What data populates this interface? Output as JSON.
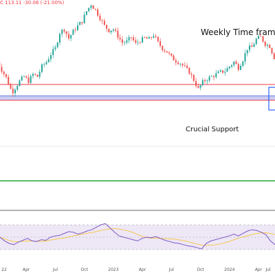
{
  "header": {
    "ohlc_text": "C 113.11 -30.06 (-21.00%)",
    "color": "#f23645"
  },
  "annotations": {
    "timeframe": "Weekly Time frame",
    "support": "Crucial Support"
  },
  "colors": {
    "up": "#26a69a",
    "down": "#ef5350",
    "support_line": "#f23645",
    "support_zone": "#c9cdf2",
    "support_zone_border": "#6f7ae0",
    "green_line": "#22a733",
    "rsi_line": "#7e57c2",
    "rsi_ma": "#f7c53b",
    "rsi_band": "#ede7f6",
    "box": "#2962ff"
  },
  "chart_data": {
    "type": "candlestick",
    "timeframe": "weekly",
    "x_tick_labels": [
      {
        "label": "22",
        "t": 0
      },
      {
        "label": "Apr",
        "t": 13
      },
      {
        "label": "Jul",
        "t": 26
      },
      {
        "label": "Oct",
        "t": 39
      },
      {
        "label": "2023",
        "t": 52
      },
      {
        "label": "Apr",
        "t": 65
      },
      {
        "label": "Jul",
        "t": 78
      },
      {
        "label": "Oct",
        "t": 91
      },
      {
        "label": "2024",
        "t": 104
      },
      {
        "label": "Apr",
        "t": 117
      },
      {
        "label": "Jul",
        "t": 130
      }
    ],
    "ylim": [
      80,
      200
    ],
    "price_path": [
      [
        0,
        150
      ],
      [
        2,
        143
      ],
      [
        4,
        136
      ],
      [
        6,
        126
      ],
      [
        7,
        124
      ],
      [
        8,
        127
      ],
      [
        10,
        133
      ],
      [
        12,
        137
      ],
      [
        14,
        133
      ],
      [
        16,
        139
      ],
      [
        18,
        137
      ],
      [
        20,
        146
      ],
      [
        22,
        150
      ],
      [
        24,
        157
      ],
      [
        26,
        162
      ],
      [
        28,
        176
      ],
      [
        30,
        179
      ],
      [
        32,
        171
      ],
      [
        34,
        177
      ],
      [
        36,
        182
      ],
      [
        38,
        186
      ],
      [
        40,
        195
      ],
      [
        42,
        201
      ],
      [
        44,
        196
      ],
      [
        46,
        189
      ],
      [
        48,
        182
      ],
      [
        50,
        178
      ],
      [
        52,
        179
      ],
      [
        54,
        173
      ],
      [
        56,
        167
      ],
      [
        58,
        168
      ],
      [
        60,
        172
      ],
      [
        62,
        166
      ],
      [
        64,
        169
      ],
      [
        66,
        171
      ],
      [
        68,
        170
      ],
      [
        70,
        174
      ],
      [
        72,
        167
      ],
      [
        74,
        162
      ],
      [
        76,
        159
      ],
      [
        78,
        154
      ],
      [
        80,
        151
      ],
      [
        82,
        149
      ],
      [
        84,
        145
      ],
      [
        86,
        141
      ],
      [
        88,
        134
      ],
      [
        90,
        126
      ],
      [
        92,
        132
      ],
      [
        94,
        135
      ],
      [
        96,
        137
      ],
      [
        98,
        139
      ],
      [
        100,
        141
      ],
      [
        102,
        142
      ],
      [
        104,
        146
      ],
      [
        106,
        150
      ],
      [
        108,
        145
      ],
      [
        110,
        152
      ],
      [
        112,
        162
      ],
      [
        114,
        163
      ],
      [
        116,
        170
      ],
      [
        118,
        172
      ],
      [
        120,
        166
      ],
      [
        122,
        164
      ],
      [
        124,
        154
      ],
      [
        125,
        141
      ]
    ],
    "support_level": 130,
    "support_zone": [
      116,
      120
    ],
    "lower_line": 100,
    "rsi": {
      "ylim": [
        20,
        80
      ],
      "upper_band": 70,
      "lower_band": 30,
      "values": [
        50,
        44,
        40,
        38,
        42,
        45,
        48,
        44,
        43,
        46,
        45,
        50,
        52,
        53,
        56,
        59,
        58,
        55,
        57,
        60,
        62,
        66,
        70,
        72,
        65,
        58,
        52,
        50,
        48,
        46,
        44,
        48,
        50,
        49,
        51,
        48,
        45,
        43,
        41,
        40,
        38,
        36,
        35,
        33,
        31,
        40,
        44,
        46,
        48,
        50,
        52,
        55,
        52,
        56,
        60,
        62,
        61,
        58,
        54,
        44,
        38
      ]
    }
  }
}
